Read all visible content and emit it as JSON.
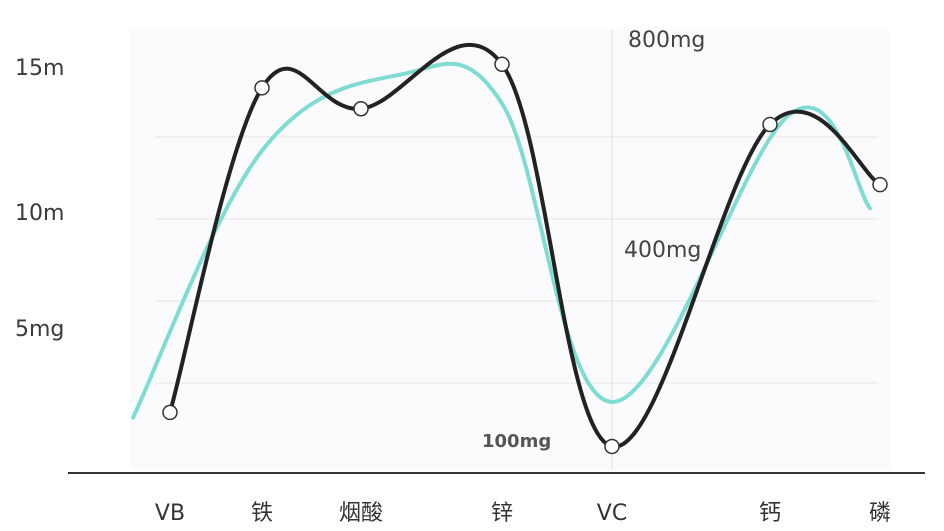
{
  "chart_data": {
    "type": "line",
    "categories": [
      "VB",
      "铁",
      "烟酸",
      "锌",
      "VC",
      "钙",
      "磷"
    ],
    "y_tick_labels": [
      "15m",
      "10m",
      "5mg"
    ],
    "annotations": [
      "800mg",
      "400mg",
      "100mg"
    ],
    "series": [
      {
        "values": [
          2.2,
          14.6,
          13.8,
          15.5,
          0.9,
          13.2,
          10.9
        ]
      },
      {
        "values": [
          2.0,
          12.2,
          15.1,
          14.0,
          2.6,
          13.6,
          10.0
        ]
      }
    ],
    "ylim": [
      0,
      17
    ],
    "grid": true,
    "colors": {
      "primary_line": "#222222",
      "secondary_line": "#7fdcd2",
      "grid": "#e6e6e6",
      "axis": "#333333",
      "marker_fill": "#ffffff"
    }
  }
}
